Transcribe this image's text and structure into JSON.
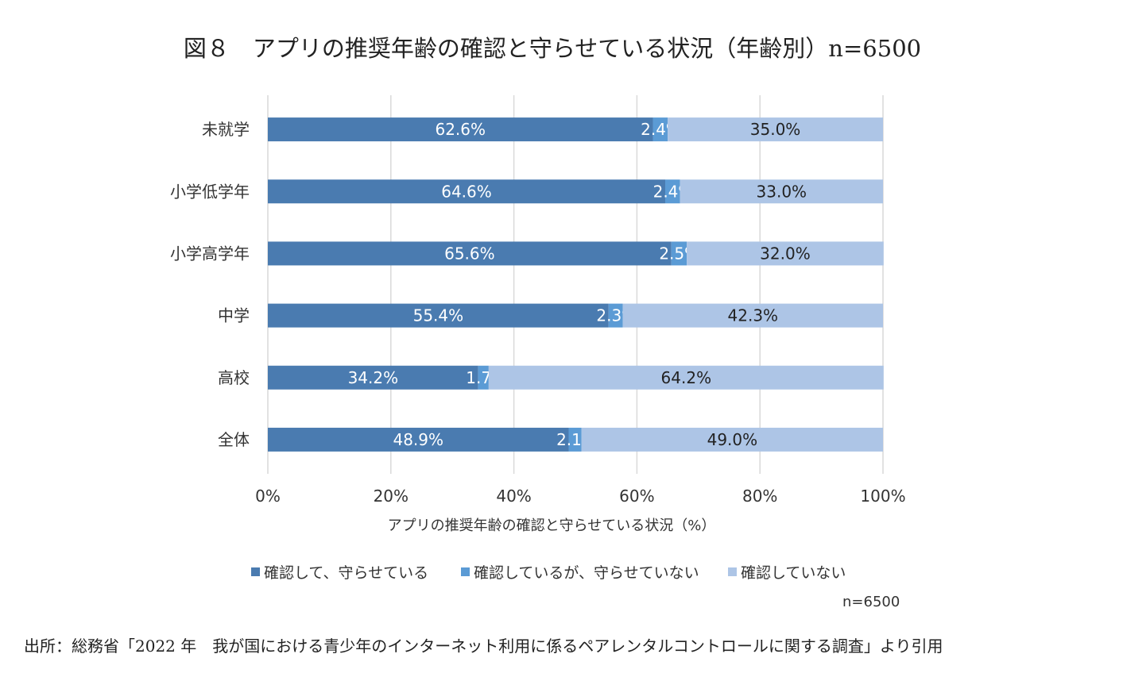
{
  "title": "図８　アプリの推奨年齢の確認と守らせている状況（年齢別）n=6500",
  "source": "出所：総務省「2022 年　我が国における青少年のインターネット利用に係るペアレンタルコントロールに関する調査」より引用",
  "clipped_text": "n=6500",
  "chart_data": {
    "type": "bar",
    "orientation": "horizontal-stacked-100",
    "categories": [
      "未就学",
      "小学低学年",
      "小学高学年",
      "中学",
      "高校",
      "全体"
    ],
    "series": [
      {
        "name": "確認して、守らせている",
        "color": "#4a7bb0",
        "values": [
          62.6,
          64.6,
          65.6,
          55.4,
          34.2,
          48.9
        ]
      },
      {
        "name": "確認しているが、守らせていない",
        "color": "#5b9bd5",
        "values": [
          2.4,
          2.4,
          2.5,
          2.3,
          1.7,
          2.1
        ]
      },
      {
        "name": "確認していない",
        "color": "#adc5e6",
        "values": [
          35.0,
          33.0,
          32.0,
          42.3,
          64.2,
          49.0
        ]
      }
    ],
    "xlabel": "アプリの推奨年齢の確認と守らせている状況（%）",
    "xlim": [
      0,
      100
    ],
    "xticks": [
      "0%",
      "20%",
      "40%",
      "60%",
      "80%",
      "100%"
    ],
    "grid": true,
    "legend": "bottom"
  }
}
